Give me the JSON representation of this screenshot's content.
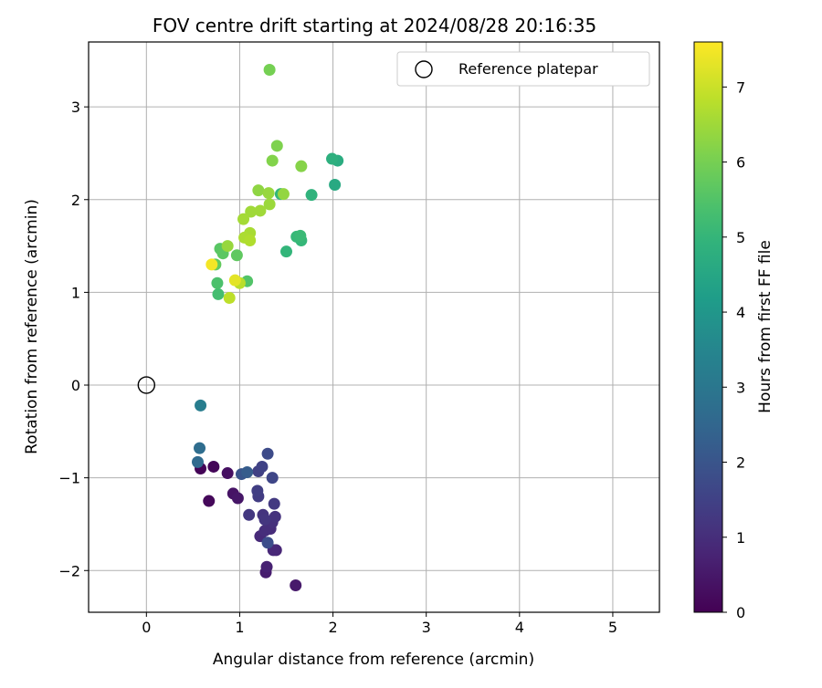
{
  "chart_data": {
    "type": "scatter",
    "title": "FOV centre drift starting at 2024/08/28 20:16:35",
    "xlabel": "Angular distance from reference (arcmin)",
    "ylabel": "Rotation from reference (arcmin)",
    "xlim": [
      -0.62,
      5.5
    ],
    "ylim": [
      -2.45,
      3.7
    ],
    "xticks": [
      0,
      1,
      2,
      3,
      4,
      5
    ],
    "xtick_labels": [
      "0",
      "1",
      "2",
      "3",
      "4",
      "5"
    ],
    "yticks": [
      -2,
      -1,
      0,
      1,
      2,
      3
    ],
    "ytick_labels": [
      "−2",
      "−1",
      "0",
      "1",
      "2",
      "3"
    ],
    "grid": true,
    "legend": {
      "placement": "top-right",
      "entries": [
        "Reference platepar"
      ]
    },
    "reference_point": {
      "name": "Reference platepar",
      "x": 0,
      "y": 0,
      "marker": "hollow-circle",
      "color": "#000000"
    },
    "colorbar": {
      "label": "Hours from first FF file",
      "colormap": "viridis",
      "range": [
        0,
        7.6
      ],
      "ticks": [
        0,
        1,
        2,
        3,
        4,
        5,
        6,
        7
      ],
      "tick_labels": [
        "0",
        "1",
        "2",
        "3",
        "4",
        "5",
        "6",
        "7"
      ]
    },
    "points": [
      {
        "x": 0.58,
        "y": -0.9,
        "c": 0.05
      },
      {
        "x": 0.72,
        "y": -0.88,
        "c": 0.1
      },
      {
        "x": 0.67,
        "y": -1.25,
        "c": 0.15
      },
      {
        "x": 0.87,
        "y": -0.95,
        "c": 0.3
      },
      {
        "x": 0.93,
        "y": -1.17,
        "c": 0.4
      },
      {
        "x": 0.98,
        "y": -1.22,
        "c": 0.45
      },
      {
        "x": 1.6,
        "y": -2.16,
        "c": 0.55
      },
      {
        "x": 1.28,
        "y": -2.02,
        "c": 0.6
      },
      {
        "x": 1.29,
        "y": -1.96,
        "c": 0.7
      },
      {
        "x": 1.39,
        "y": -1.78,
        "c": 0.8
      },
      {
        "x": 1.36,
        "y": -1.78,
        "c": 0.85
      },
      {
        "x": 1.22,
        "y": -1.63,
        "c": 0.9
      },
      {
        "x": 1.33,
        "y": -1.55,
        "c": 0.95
      },
      {
        "x": 1.27,
        "y": -1.57,
        "c": 1.0
      },
      {
        "x": 1.35,
        "y": -1.48,
        "c": 1.05
      },
      {
        "x": 1.38,
        "y": -1.42,
        "c": 1.1
      },
      {
        "x": 1.25,
        "y": -1.4,
        "c": 1.15
      },
      {
        "x": 1.27,
        "y": -1.45,
        "c": 1.2
      },
      {
        "x": 1.1,
        "y": -1.4,
        "c": 1.25
      },
      {
        "x": 1.37,
        "y": -1.28,
        "c": 1.3
      },
      {
        "x": 1.2,
        "y": -1.2,
        "c": 1.35
      },
      {
        "x": 1.19,
        "y": -1.14,
        "c": 1.4
      },
      {
        "x": 1.2,
        "y": -0.93,
        "c": 1.45
      },
      {
        "x": 1.24,
        "y": -0.88,
        "c": 1.5
      },
      {
        "x": 1.35,
        "y": -1.0,
        "c": 1.6
      },
      {
        "x": 1.3,
        "y": -0.74,
        "c": 1.75
      },
      {
        "x": 1.3,
        "y": -1.7,
        "c": 1.8
      },
      {
        "x": 1.02,
        "y": -0.96,
        "c": 2.0
      },
      {
        "x": 1.08,
        "y": -0.94,
        "c": 2.2
      },
      {
        "x": 0.55,
        "y": -0.83,
        "c": 2.6
      },
      {
        "x": 0.57,
        "y": -0.68,
        "c": 2.7
      },
      {
        "x": 0.58,
        "y": -0.22,
        "c": 3.2
      },
      {
        "x": 2.02,
        "y": 2.16,
        "c": 4.6
      },
      {
        "x": 2.05,
        "y": 2.42,
        "c": 4.7
      },
      {
        "x": 1.99,
        "y": 2.44,
        "c": 4.8
      },
      {
        "x": 1.77,
        "y": 2.05,
        "c": 4.9
      },
      {
        "x": 1.44,
        "y": 2.06,
        "c": 5.0
      },
      {
        "x": 1.5,
        "y": 1.44,
        "c": 5.0
      },
      {
        "x": 1.66,
        "y": 1.56,
        "c": 5.05
      },
      {
        "x": 1.61,
        "y": 1.6,
        "c": 5.1
      },
      {
        "x": 1.65,
        "y": 1.61,
        "c": 5.15
      },
      {
        "x": 0.77,
        "y": 0.98,
        "c": 5.3
      },
      {
        "x": 0.76,
        "y": 1.1,
        "c": 5.4
      },
      {
        "x": 1.08,
        "y": 1.12,
        "c": 5.5
      },
      {
        "x": 0.79,
        "y": 1.47,
        "c": 5.6
      },
      {
        "x": 0.82,
        "y": 1.42,
        "c": 5.65
      },
      {
        "x": 0.97,
        "y": 1.4,
        "c": 5.7
      },
      {
        "x": 0.74,
        "y": 1.3,
        "c": 5.75
      },
      {
        "x": 1.32,
        "y": 3.4,
        "c": 6.0
      },
      {
        "x": 1.4,
        "y": 2.58,
        "c": 6.1
      },
      {
        "x": 1.35,
        "y": 2.42,
        "c": 6.15
      },
      {
        "x": 1.66,
        "y": 2.36,
        "c": 6.2
      },
      {
        "x": 1.2,
        "y": 2.1,
        "c": 6.3
      },
      {
        "x": 1.47,
        "y": 2.06,
        "c": 6.35
      },
      {
        "x": 1.31,
        "y": 2.07,
        "c": 6.4
      },
      {
        "x": 0.87,
        "y": 1.5,
        "c": 6.4
      },
      {
        "x": 1.32,
        "y": 1.95,
        "c": 6.45
      },
      {
        "x": 1.22,
        "y": 1.88,
        "c": 6.5
      },
      {
        "x": 1.12,
        "y": 1.87,
        "c": 6.5
      },
      {
        "x": 1.04,
        "y": 1.79,
        "c": 6.55
      },
      {
        "x": 1.11,
        "y": 1.64,
        "c": 6.6
      },
      {
        "x": 1.05,
        "y": 1.59,
        "c": 6.65
      },
      {
        "x": 1.11,
        "y": 1.56,
        "c": 6.7
      },
      {
        "x": 1.0,
        "y": 1.1,
        "c": 6.8
      },
      {
        "x": 0.89,
        "y": 0.94,
        "c": 6.85
      },
      {
        "x": 0.95,
        "y": 1.13,
        "c": 7.3
      },
      {
        "x": 0.7,
        "y": 1.3,
        "c": 7.5
      }
    ]
  }
}
